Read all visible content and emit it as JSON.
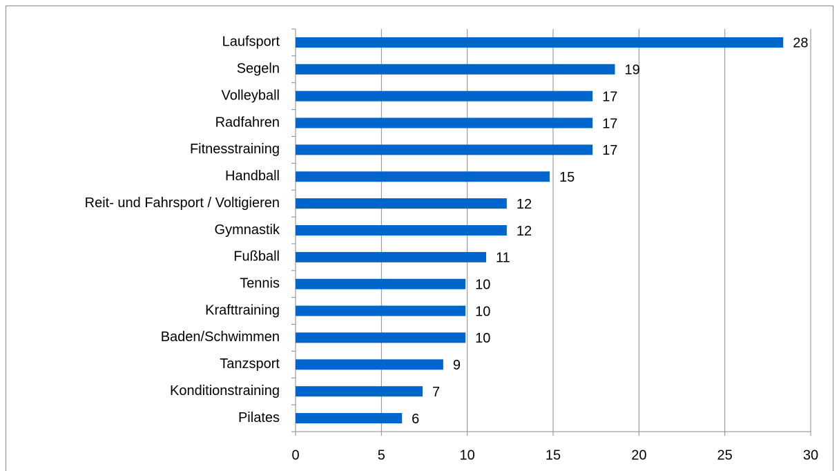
{
  "chart_data": {
    "type": "barh",
    "categories": [
      "Laufsport",
      "Segeln",
      "Volleyball",
      "Radfahren",
      "Fitnesstraining",
      "Handball",
      "Reit- und Fahrsport / Voltigieren",
      "Gymnastik",
      "Fußball",
      "Tennis",
      "Krafttraining",
      "Baden/Schwimmen",
      "Tanzsport",
      "Konditionstraining",
      "Pilates"
    ],
    "values": [
      28.4,
      18.6,
      17.3,
      17.3,
      17.3,
      14.8,
      12.3,
      12.3,
      11.1,
      9.9,
      9.9,
      9.9,
      8.6,
      7.4,
      6.2
    ],
    "value_labels": [
      "28",
      "19",
      "17",
      "17",
      "17",
      "15",
      "12",
      "12",
      "11",
      "10",
      "10",
      "10",
      "9",
      "7",
      "6"
    ],
    "color": "#0066cc",
    "xlim": [
      0,
      30
    ],
    "xticks": [
      0,
      5,
      10,
      15,
      20,
      25,
      30
    ],
    "grid": true
  }
}
